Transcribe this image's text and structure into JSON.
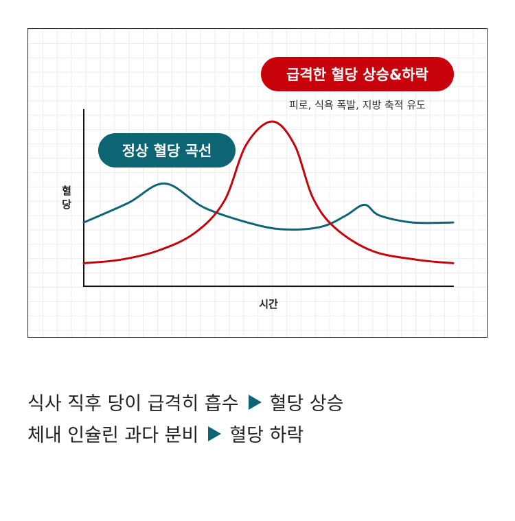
{
  "chart_data": {
    "type": "line",
    "xlabel": "시간",
    "ylabel": "혈당",
    "grid": true,
    "series": [
      {
        "name": "정상 혈당 곡선",
        "color": "#0d6473",
        "points": [
          [
            0,
            36
          ],
          [
            12,
            47
          ],
          [
            22,
            58
          ],
          [
            33,
            44
          ],
          [
            48,
            34
          ],
          [
            57,
            32
          ],
          [
            65,
            34
          ],
          [
            71,
            40
          ],
          [
            76,
            46
          ],
          [
            80,
            40
          ],
          [
            89,
            36
          ],
          [
            100,
            36
          ]
        ]
      },
      {
        "name": "급격한 혈당 상승&하락",
        "color": "#c7020a",
        "points": [
          [
            0,
            13
          ],
          [
            10,
            15
          ],
          [
            20,
            20
          ],
          [
            30,
            30
          ],
          [
            38,
            48
          ],
          [
            44,
            80
          ],
          [
            51,
            93
          ],
          [
            57,
            80
          ],
          [
            62,
            50
          ],
          [
            68,
            33
          ],
          [
            78,
            20
          ],
          [
            90,
            15
          ],
          [
            100,
            13
          ]
        ]
      }
    ],
    "xlim": [
      0,
      100
    ],
    "ylim": [
      0,
      100
    ]
  },
  "labels": {
    "normal_pill": "정상 혈당 곡선",
    "spike_pill": "급격한 혈당 상승&하락",
    "spike_sub": "피로, 식욕 폭발, 지방 축적 유도"
  },
  "captions": [
    {
      "left": "식사 직후 당이 급격히 흡수",
      "right": "혈당 상승"
    },
    {
      "left": "체내 인슐린 과다 분비",
      "right": "혈당 하락"
    }
  ],
  "colors": {
    "accent_teal": "#0d6473",
    "accent_red": "#c7020a"
  }
}
